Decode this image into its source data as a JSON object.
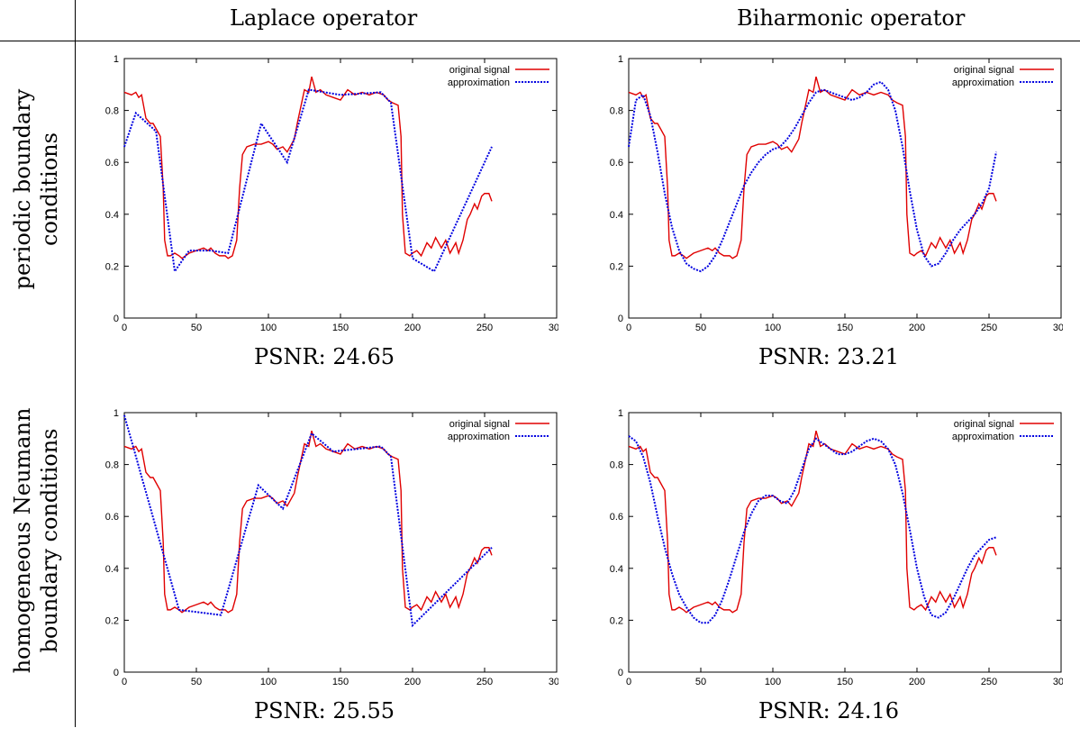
{
  "header": {
    "col1": "Laplace operator",
    "col2": "Biharmonic operator"
  },
  "rows": {
    "row1": [
      "periodic boundary",
      "conditions"
    ],
    "row2": [
      "homogeneous Neumann",
      "boundary conditions"
    ]
  },
  "colors": {
    "original": "#e00000",
    "approximation": "#0000e0"
  },
  "chart_data": [
    {
      "type": "line",
      "psnr": "PSNR: 24.65",
      "xlim": [
        0,
        300
      ],
      "ylim": [
        0,
        1
      ],
      "xticks": [
        "0",
        "50",
        "100",
        "150",
        "200",
        "250",
        "300"
      ],
      "yticks": [
        "0",
        "0.2",
        "0.4",
        "0.6",
        "0.8",
        "1"
      ],
      "legend_position": "top-right",
      "series": [
        {
          "name": "original signal",
          "style": "solid",
          "color": "#e00000",
          "x": [
            0,
            5,
            8,
            10,
            12,
            15,
            18,
            20,
            22,
            25,
            27,
            28,
            30,
            32,
            35,
            38,
            40,
            45,
            50,
            55,
            58,
            60,
            63,
            66,
            70,
            72,
            75,
            78,
            80,
            82,
            85,
            90,
            95,
            100,
            103,
            106,
            110,
            113,
            118,
            120,
            125,
            128,
            130,
            133,
            136,
            140,
            145,
            150,
            155,
            160,
            165,
            170,
            175,
            180,
            183,
            186,
            190,
            192,
            193,
            195,
            198,
            200,
            203,
            206,
            210,
            213,
            216,
            220,
            223,
            226,
            230,
            232,
            235,
            238,
            240,
            243,
            245,
            248,
            250,
            253,
            255
          ],
          "y": [
            0.87,
            0.86,
            0.87,
            0.85,
            0.86,
            0.77,
            0.75,
            0.75,
            0.73,
            0.7,
            0.5,
            0.3,
            0.24,
            0.24,
            0.25,
            0.24,
            0.23,
            0.25,
            0.26,
            0.27,
            0.26,
            0.27,
            0.25,
            0.24,
            0.24,
            0.23,
            0.24,
            0.3,
            0.5,
            0.63,
            0.66,
            0.67,
            0.67,
            0.68,
            0.67,
            0.65,
            0.66,
            0.64,
            0.69,
            0.75,
            0.88,
            0.87,
            0.93,
            0.87,
            0.88,
            0.86,
            0.85,
            0.84,
            0.88,
            0.86,
            0.87,
            0.86,
            0.87,
            0.86,
            0.84,
            0.83,
            0.82,
            0.7,
            0.4,
            0.25,
            0.24,
            0.25,
            0.26,
            0.24,
            0.29,
            0.27,
            0.31,
            0.27,
            0.3,
            0.25,
            0.29,
            0.25,
            0.3,
            0.38,
            0.4,
            0.44,
            0.42,
            0.47,
            0.48,
            0.48,
            0.45
          ]
        },
        {
          "name": "approximation",
          "style": "dotted",
          "color": "#0000e0",
          "x": [
            0,
            8,
            22,
            35,
            45,
            60,
            72,
            95,
            113,
            128,
            150,
            178,
            185,
            200,
            215,
            255
          ],
          "y": [
            0.66,
            0.79,
            0.72,
            0.18,
            0.26,
            0.26,
            0.25,
            0.75,
            0.6,
            0.88,
            0.86,
            0.87,
            0.83,
            0.23,
            0.18,
            0.66
          ]
        }
      ]
    },
    {
      "type": "line",
      "psnr": "PSNR: 23.21",
      "xlim": [
        0,
        300
      ],
      "ylim": [
        0,
        1
      ],
      "xticks": [
        "0",
        "50",
        "100",
        "150",
        "200",
        "250",
        "300"
      ],
      "yticks": [
        "0",
        "0.2",
        "0.4",
        "0.6",
        "0.8",
        "1"
      ],
      "legend_position": "top-right",
      "series": [
        {
          "name": "original signal",
          "style": "solid",
          "color": "#e00000",
          "x": [
            0,
            5,
            8,
            10,
            12,
            15,
            18,
            20,
            22,
            25,
            27,
            28,
            30,
            32,
            35,
            38,
            40,
            45,
            50,
            55,
            58,
            60,
            63,
            66,
            70,
            72,
            75,
            78,
            80,
            82,
            85,
            90,
            95,
            100,
            103,
            106,
            110,
            113,
            118,
            120,
            125,
            128,
            130,
            133,
            136,
            140,
            145,
            150,
            155,
            160,
            165,
            170,
            175,
            180,
            183,
            186,
            190,
            192,
            193,
            195,
            198,
            200,
            203,
            206,
            210,
            213,
            216,
            220,
            223,
            226,
            230,
            232,
            235,
            238,
            240,
            243,
            245,
            248,
            250,
            253,
            255
          ],
          "y": [
            0.87,
            0.86,
            0.87,
            0.85,
            0.86,
            0.77,
            0.75,
            0.75,
            0.73,
            0.7,
            0.5,
            0.3,
            0.24,
            0.24,
            0.25,
            0.24,
            0.23,
            0.25,
            0.26,
            0.27,
            0.26,
            0.27,
            0.25,
            0.24,
            0.24,
            0.23,
            0.24,
            0.3,
            0.5,
            0.63,
            0.66,
            0.67,
            0.67,
            0.68,
            0.67,
            0.65,
            0.66,
            0.64,
            0.69,
            0.75,
            0.88,
            0.87,
            0.93,
            0.87,
            0.88,
            0.86,
            0.85,
            0.84,
            0.88,
            0.86,
            0.87,
            0.86,
            0.87,
            0.86,
            0.84,
            0.83,
            0.82,
            0.7,
            0.4,
            0.25,
            0.24,
            0.25,
            0.26,
            0.24,
            0.29,
            0.27,
            0.31,
            0.27,
            0.3,
            0.25,
            0.29,
            0.25,
            0.3,
            0.38,
            0.4,
            0.44,
            0.42,
            0.47,
            0.48,
            0.48,
            0.45
          ]
        },
        {
          "name": "approximation",
          "style": "dotted",
          "color": "#0000e0",
          "x": [
            0,
            5,
            10,
            15,
            20,
            25,
            30,
            35,
            40,
            45,
            50,
            55,
            60,
            65,
            70,
            75,
            80,
            85,
            90,
            95,
            100,
            105,
            110,
            115,
            120,
            125,
            130,
            135,
            140,
            145,
            150,
            155,
            160,
            165,
            170,
            175,
            180,
            185,
            190,
            195,
            200,
            205,
            210,
            215,
            220,
            225,
            230,
            235,
            240,
            245,
            250,
            255
          ],
          "y": [
            0.66,
            0.84,
            0.86,
            0.78,
            0.64,
            0.48,
            0.35,
            0.26,
            0.21,
            0.19,
            0.18,
            0.2,
            0.24,
            0.3,
            0.37,
            0.44,
            0.51,
            0.56,
            0.6,
            0.63,
            0.65,
            0.66,
            0.69,
            0.73,
            0.78,
            0.83,
            0.87,
            0.88,
            0.87,
            0.86,
            0.85,
            0.84,
            0.85,
            0.87,
            0.9,
            0.91,
            0.88,
            0.8,
            0.66,
            0.49,
            0.34,
            0.24,
            0.2,
            0.21,
            0.25,
            0.3,
            0.34,
            0.37,
            0.4,
            0.44,
            0.5,
            0.64
          ]
        }
      ]
    },
    {
      "type": "line",
      "psnr": "PSNR: 25.55",
      "xlim": [
        0,
        300
      ],
      "ylim": [
        0,
        1
      ],
      "xticks": [
        "0",
        "50",
        "100",
        "150",
        "200",
        "250",
        "300"
      ],
      "yticks": [
        "0",
        "0.2",
        "0.4",
        "0.6",
        "0.8",
        "1"
      ],
      "legend_position": "top-right",
      "series": [
        {
          "name": "original signal",
          "style": "solid",
          "color": "#e00000",
          "x": [
            0,
            5,
            8,
            10,
            12,
            15,
            18,
            20,
            22,
            25,
            27,
            28,
            30,
            32,
            35,
            38,
            40,
            45,
            50,
            55,
            58,
            60,
            63,
            66,
            70,
            72,
            75,
            78,
            80,
            82,
            85,
            90,
            95,
            100,
            103,
            106,
            110,
            113,
            118,
            120,
            125,
            128,
            130,
            133,
            136,
            140,
            145,
            150,
            155,
            160,
            165,
            170,
            175,
            180,
            183,
            186,
            190,
            192,
            193,
            195,
            198,
            200,
            203,
            206,
            210,
            213,
            216,
            220,
            223,
            226,
            230,
            232,
            235,
            238,
            240,
            243,
            245,
            248,
            250,
            253,
            255
          ],
          "y": [
            0.87,
            0.86,
            0.87,
            0.85,
            0.86,
            0.77,
            0.75,
            0.75,
            0.73,
            0.7,
            0.5,
            0.3,
            0.24,
            0.24,
            0.25,
            0.24,
            0.23,
            0.25,
            0.26,
            0.27,
            0.26,
            0.27,
            0.25,
            0.24,
            0.24,
            0.23,
            0.24,
            0.3,
            0.5,
            0.63,
            0.66,
            0.67,
            0.67,
            0.68,
            0.67,
            0.65,
            0.66,
            0.64,
            0.69,
            0.75,
            0.88,
            0.87,
            0.93,
            0.87,
            0.88,
            0.86,
            0.85,
            0.84,
            0.88,
            0.86,
            0.87,
            0.86,
            0.87,
            0.86,
            0.84,
            0.83,
            0.82,
            0.7,
            0.4,
            0.25,
            0.24,
            0.25,
            0.26,
            0.24,
            0.29,
            0.27,
            0.31,
            0.27,
            0.3,
            0.25,
            0.29,
            0.25,
            0.3,
            0.38,
            0.4,
            0.44,
            0.42,
            0.47,
            0.48,
            0.48,
            0.45
          ]
        },
        {
          "name": "approximation",
          "style": "dotted",
          "color": "#0000e0",
          "x": [
            0,
            38,
            67,
            93,
            110,
            130,
            145,
            178,
            185,
            200,
            255
          ],
          "y": [
            0.99,
            0.24,
            0.22,
            0.72,
            0.63,
            0.92,
            0.85,
            0.87,
            0.83,
            0.18,
            0.48
          ]
        }
      ]
    },
    {
      "type": "line",
      "psnr": "PSNR: 24.16",
      "xlim": [
        0,
        300
      ],
      "ylim": [
        0,
        1
      ],
      "xticks": [
        "0",
        "50",
        "100",
        "150",
        "200",
        "250",
        "300"
      ],
      "yticks": [
        "0",
        "0.2",
        "0.4",
        "0.6",
        "0.8",
        "1"
      ],
      "legend_position": "top-right",
      "series": [
        {
          "name": "original signal",
          "style": "solid",
          "color": "#e00000",
          "x": [
            0,
            5,
            8,
            10,
            12,
            15,
            18,
            20,
            22,
            25,
            27,
            28,
            30,
            32,
            35,
            38,
            40,
            45,
            50,
            55,
            58,
            60,
            63,
            66,
            70,
            72,
            75,
            78,
            80,
            82,
            85,
            90,
            95,
            100,
            103,
            106,
            110,
            113,
            118,
            120,
            125,
            128,
            130,
            133,
            136,
            140,
            145,
            150,
            155,
            160,
            165,
            170,
            175,
            180,
            183,
            186,
            190,
            192,
            193,
            195,
            198,
            200,
            203,
            206,
            210,
            213,
            216,
            220,
            223,
            226,
            230,
            232,
            235,
            238,
            240,
            243,
            245,
            248,
            250,
            253,
            255
          ],
          "y": [
            0.87,
            0.86,
            0.87,
            0.85,
            0.86,
            0.77,
            0.75,
            0.75,
            0.73,
            0.7,
            0.5,
            0.3,
            0.24,
            0.24,
            0.25,
            0.24,
            0.23,
            0.25,
            0.26,
            0.27,
            0.26,
            0.27,
            0.25,
            0.24,
            0.24,
            0.23,
            0.24,
            0.3,
            0.5,
            0.63,
            0.66,
            0.67,
            0.67,
            0.68,
            0.67,
            0.65,
            0.66,
            0.64,
            0.69,
            0.75,
            0.88,
            0.87,
            0.93,
            0.87,
            0.88,
            0.86,
            0.85,
            0.84,
            0.88,
            0.86,
            0.87,
            0.86,
            0.87,
            0.86,
            0.84,
            0.83,
            0.82,
            0.7,
            0.4,
            0.25,
            0.24,
            0.25,
            0.26,
            0.24,
            0.29,
            0.27,
            0.31,
            0.27,
            0.3,
            0.25,
            0.29,
            0.25,
            0.3,
            0.38,
            0.4,
            0.44,
            0.42,
            0.47,
            0.48,
            0.48,
            0.45
          ]
        },
        {
          "name": "approximation",
          "style": "dotted",
          "color": "#0000e0",
          "x": [
            0,
            5,
            10,
            15,
            20,
            25,
            30,
            35,
            40,
            45,
            50,
            55,
            60,
            65,
            70,
            75,
            80,
            85,
            90,
            95,
            100,
            105,
            110,
            115,
            120,
            125,
            130,
            135,
            140,
            145,
            150,
            155,
            160,
            165,
            170,
            175,
            180,
            185,
            190,
            195,
            200,
            205,
            210,
            215,
            220,
            225,
            230,
            235,
            240,
            245,
            250,
            255
          ],
          "y": [
            0.91,
            0.89,
            0.83,
            0.73,
            0.6,
            0.48,
            0.38,
            0.3,
            0.25,
            0.21,
            0.19,
            0.19,
            0.22,
            0.28,
            0.36,
            0.45,
            0.54,
            0.61,
            0.66,
            0.68,
            0.68,
            0.66,
            0.65,
            0.7,
            0.78,
            0.86,
            0.9,
            0.88,
            0.86,
            0.84,
            0.84,
            0.85,
            0.87,
            0.89,
            0.9,
            0.89,
            0.86,
            0.8,
            0.69,
            0.55,
            0.4,
            0.29,
            0.22,
            0.21,
            0.23,
            0.28,
            0.34,
            0.4,
            0.45,
            0.48,
            0.51,
            0.52
          ]
        }
      ]
    }
  ]
}
